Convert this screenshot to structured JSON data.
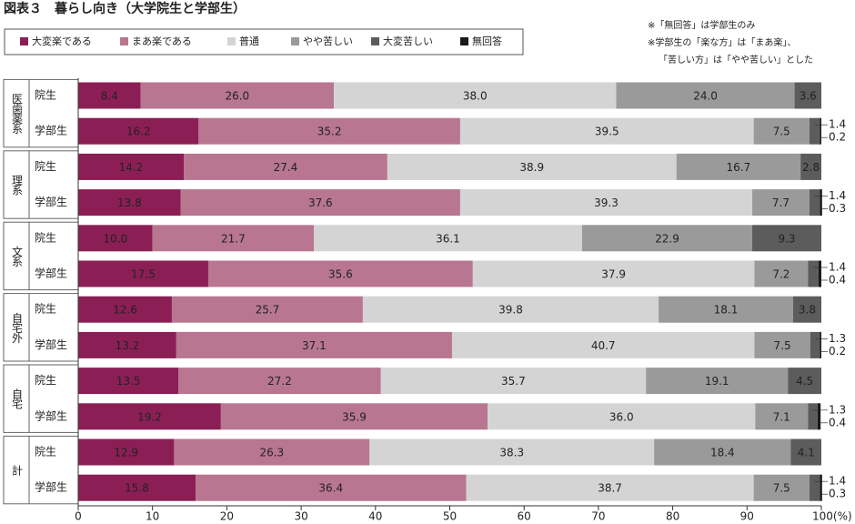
{
  "chart_data": {
    "type": "stacked-bar-horizontal",
    "title": "図表３　暮らし向き（大学院生と学部生）",
    "notes": [
      "※「無回答」は学部生のみ",
      "※学部生の「楽な方」は「まあ楽」、",
      "「苦しい方」は「やや苦しい」とした"
    ],
    "groups": [
      "医歯薬系",
      "理系",
      "文系",
      "自宅外",
      "自宅",
      "計"
    ],
    "categories": [
      "院生",
      "学部生",
      "院生",
      "学部生",
      "院生",
      "学部生",
      "院生",
      "学部生",
      "院生",
      "学部生",
      "院生",
      "学部生"
    ],
    "series": [
      {
        "name": "大変楽である",
        "color": "#8b1f55",
        "values": [
          8.4,
          16.2,
          14.2,
          13.8,
          10,
          17.5,
          12.6,
          13.2,
          13.5,
          19.2,
          12.9,
          15.8
        ],
        "value_labels": [
          "8.4",
          "16.2",
          "14.2",
          "13.8",
          "10.0",
          "17.5",
          "12.6",
          "13.2",
          "13.5",
          "19.2",
          "12.9",
          "15.8"
        ]
      },
      {
        "name": "まあ楽である",
        "color": "#b87690",
        "values": [
          26,
          35.2,
          27.4,
          37.6,
          21.7,
          35.6,
          25.7,
          37.1,
          27.2,
          35.9,
          26.3,
          36.4
        ],
        "value_labels": [
          "26.0",
          "35.2",
          "27.4",
          "37.6",
          "21.7",
          "35.6",
          "25.7",
          "37.1",
          "27.2",
          "35.9",
          "26.3",
          "36.4"
        ]
      },
      {
        "name": "普通",
        "color": "#d4d4d4",
        "values": [
          38,
          39.5,
          38.9,
          39.3,
          36.1,
          37.9,
          39.8,
          40.7,
          35.7,
          36,
          38.3,
          38.7
        ],
        "value_labels": [
          "38.0",
          "39.5",
          "38.9",
          "39.3",
          "36.1",
          "37.9",
          "39.8",
          "40.7",
          "35.7",
          "36.0",
          "38.3",
          "38.7"
        ]
      },
      {
        "name": "やや苦しい",
        "color": "#9a9a9a",
        "values": [
          24,
          7.5,
          16.7,
          7.7,
          22.9,
          7.2,
          18.1,
          7.5,
          19.1,
          7.1,
          18.4,
          7.5
        ],
        "value_labels": [
          "24.0",
          "7.5",
          "16.7",
          "7.7",
          "22.9",
          "7.2",
          "18.1",
          "7.5",
          "19.1",
          "7.1",
          "18.4",
          "7.5"
        ]
      },
      {
        "name": "大変苦しい",
        "color": "#5c5c5c",
        "values": [
          3.6,
          1.4,
          2.8,
          1.4,
          9.3,
          1.4,
          3.8,
          1.3,
          4.5,
          1.3,
          4.1,
          1.4
        ],
        "value_labels": [
          "3.6",
          "1.4",
          "2.8",
          "1.4",
          "9.3",
          "1.4",
          "3.8",
          "1.3",
          "4.5",
          "1.3",
          "4.1",
          "1.4"
        ]
      },
      {
        "name": "無回答",
        "color": "#1a1a1a",
        "values": [
          null,
          0.2,
          null,
          0.3,
          null,
          0.4,
          null,
          0.2,
          null,
          0.4,
          null,
          0.3
        ],
        "value_labels": [
          null,
          "0.2",
          null,
          "0.3",
          null,
          "0.4",
          null,
          "0.2",
          null,
          "0.4",
          null,
          "0.3"
        ]
      }
    ],
    "xlim": [
      0,
      100
    ],
    "xticks": [
      0,
      10,
      20,
      30,
      40,
      50,
      60,
      70,
      80,
      90,
      {
        "value": 100,
        "label": "100(%)"
      }
    ],
    "legend": "top-left"
  }
}
